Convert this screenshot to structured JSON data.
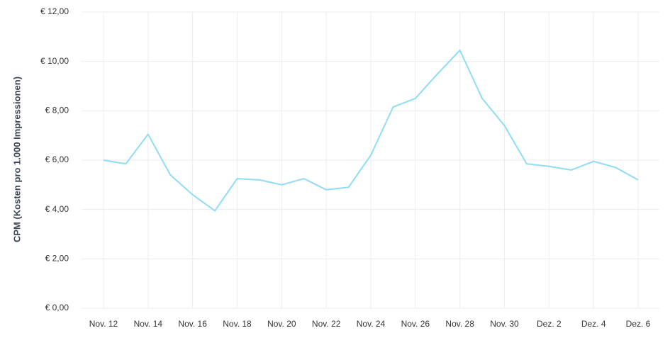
{
  "chart_data": {
    "type": "line",
    "y_label": "CPM (Kosten pro 1.000 Impressionen)",
    "categories": [
      "Nov. 12",
      null,
      "Nov. 14",
      null,
      "Nov. 16",
      null,
      "Nov. 18",
      null,
      "Nov. 20",
      null,
      "Nov. 22",
      null,
      "Nov. 24",
      null,
      "Nov. 26",
      null,
      "Nov. 28",
      null,
      "Nov. 30",
      null,
      "Dez. 2",
      null,
      "Dez. 4",
      null,
      "Dez. 6"
    ],
    "values": [
      6.0,
      5.85,
      7.05,
      5.4,
      4.6,
      3.95,
      5.25,
      5.2,
      5.0,
      5.25,
      4.8,
      4.9,
      6.2,
      8.15,
      8.5,
      9.5,
      10.45,
      8.5,
      7.4,
      5.85,
      5.75,
      5.6,
      5.95,
      5.7,
      5.2
    ],
    "color": "#8fdcf6",
    "ylim": [
      0,
      12
    ],
    "yticks": [
      {
        "value": 0,
        "label": "€ 0,00"
      },
      {
        "value": 2,
        "label": "€ 2,00"
      },
      {
        "value": 4,
        "label": "€ 4,00"
      },
      {
        "value": 6,
        "label": "€ 6,00"
      },
      {
        "value": 8,
        "label": "€ 8,00"
      },
      {
        "value": 10,
        "label": "€ 10,00"
      },
      {
        "value": 12,
        "label": "€ 12,00"
      }
    ],
    "grid": true
  }
}
